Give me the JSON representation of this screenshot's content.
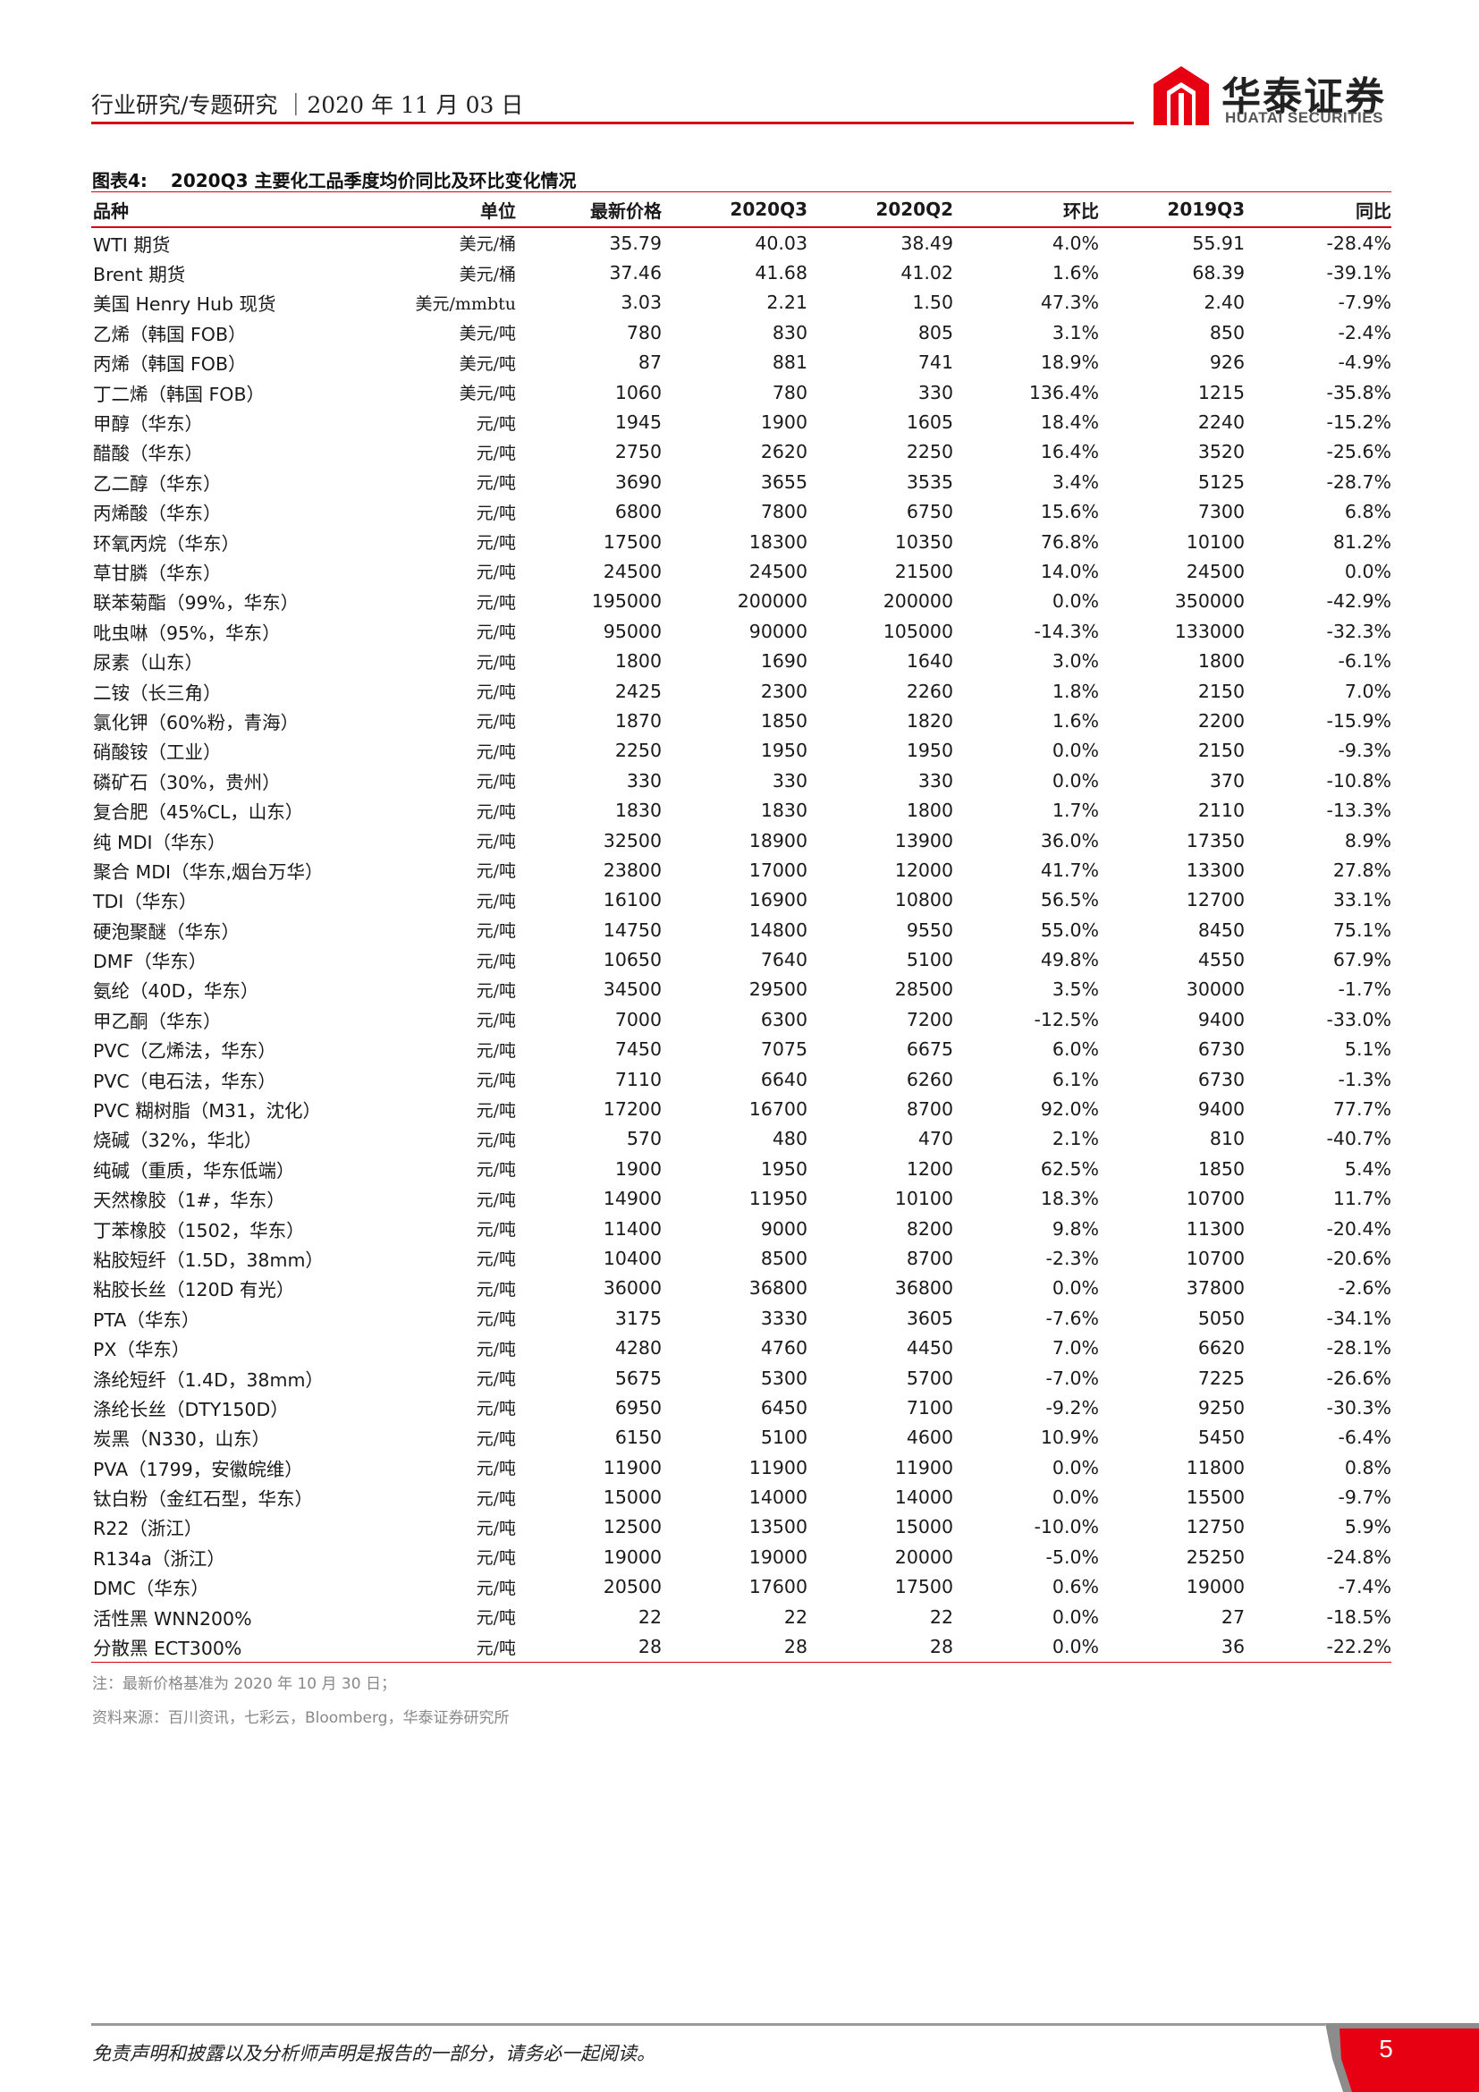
{
  "header": {
    "breadcrumb": "行业研究/专题研究 ｜2020 年 11 月 03 日",
    "logo_cn": "华泰证券",
    "logo_en": "HUATAI SECURITIES",
    "accent_color": "#d7000f"
  },
  "figure": {
    "number": "图表4:",
    "title": "2020Q3 主要化工品季度均价同比及环比变化情况"
  },
  "table": {
    "columns": [
      "品种",
      "单位",
      "最新价格",
      "2020Q3",
      "2020Q2",
      "环比",
      "2019Q3",
      "同比"
    ],
    "rows": [
      [
        "WTI 期货",
        "美元/桶",
        "35.79",
        "40.03",
        "38.49",
        "4.0%",
        "55.91",
        "-28.4%"
      ],
      [
        "Brent 期货",
        "美元/桶",
        "37.46",
        "41.68",
        "41.02",
        "1.6%",
        "68.39",
        "-39.1%"
      ],
      [
        "美国 Henry Hub 现货",
        "美元/mmbtu",
        "3.03",
        "2.21",
        "1.50",
        "47.3%",
        "2.40",
        "-7.9%"
      ],
      [
        "乙烯（韩国 FOB）",
        "美元/吨",
        "780",
        "830",
        "805",
        "3.1%",
        "850",
        "-2.4%"
      ],
      [
        "丙烯（韩国 FOB）",
        "美元/吨",
        "87",
        "881",
        "741",
        "18.9%",
        "926",
        "-4.9%"
      ],
      [
        "丁二烯（韩国 FOB）",
        "美元/吨",
        "1060",
        "780",
        "330",
        "136.4%",
        "1215",
        "-35.8%"
      ],
      [
        "甲醇（华东）",
        "元/吨",
        "1945",
        "1900",
        "1605",
        "18.4%",
        "2240",
        "-15.2%"
      ],
      [
        "醋酸（华东）",
        "元/吨",
        "2750",
        "2620",
        "2250",
        "16.4%",
        "3520",
        "-25.6%"
      ],
      [
        "乙二醇（华东）",
        "元/吨",
        "3690",
        "3655",
        "3535",
        "3.4%",
        "5125",
        "-28.7%"
      ],
      [
        "丙烯酸（华东）",
        "元/吨",
        "6800",
        "7800",
        "6750",
        "15.6%",
        "7300",
        "6.8%"
      ],
      [
        "环氧丙烷（华东）",
        "元/吨",
        "17500",
        "18300",
        "10350",
        "76.8%",
        "10100",
        "81.2%"
      ],
      [
        "草甘膦（华东）",
        "元/吨",
        "24500",
        "24500",
        "21500",
        "14.0%",
        "24500",
        "0.0%"
      ],
      [
        "联苯菊酯（99%，华东）",
        "元/吨",
        "195000",
        "200000",
        "200000",
        "0.0%",
        "350000",
        "-42.9%"
      ],
      [
        "吡虫啉（95%，华东）",
        "元/吨",
        "95000",
        "90000",
        "105000",
        "-14.3%",
        "133000",
        "-32.3%"
      ],
      [
        "尿素（山东）",
        "元/吨",
        "1800",
        "1690",
        "1640",
        "3.0%",
        "1800",
        "-6.1%"
      ],
      [
        "二铵（长三角）",
        "元/吨",
        "2425",
        "2300",
        "2260",
        "1.8%",
        "2150",
        "7.0%"
      ],
      [
        "氯化钾（60%粉，青海）",
        "元/吨",
        "1870",
        "1850",
        "1820",
        "1.6%",
        "2200",
        "-15.9%"
      ],
      [
        "硝酸铵（工业）",
        "元/吨",
        "2250",
        "1950",
        "1950",
        "0.0%",
        "2150",
        "-9.3%"
      ],
      [
        "磷矿石（30%，贵州）",
        "元/吨",
        "330",
        "330",
        "330",
        "0.0%",
        "370",
        "-10.8%"
      ],
      [
        "复合肥（45%CL，山东）",
        "元/吨",
        "1830",
        "1830",
        "1800",
        "1.7%",
        "2110",
        "-13.3%"
      ],
      [
        "纯 MDI（华东）",
        "元/吨",
        "32500",
        "18900",
        "13900",
        "36.0%",
        "17350",
        "8.9%"
      ],
      [
        "聚合 MDI（华东,烟台万华）",
        "元/吨",
        "23800",
        "17000",
        "12000",
        "41.7%",
        "13300",
        "27.8%"
      ],
      [
        "TDI（华东）",
        "元/吨",
        "16100",
        "16900",
        "10800",
        "56.5%",
        "12700",
        "33.1%"
      ],
      [
        "硬泡聚醚（华东）",
        "元/吨",
        "14750",
        "14800",
        "9550",
        "55.0%",
        "8450",
        "75.1%"
      ],
      [
        "DMF（华东）",
        "元/吨",
        "10650",
        "7640",
        "5100",
        "49.8%",
        "4550",
        "67.9%"
      ],
      [
        "氨纶（40D，华东）",
        "元/吨",
        "34500",
        "29500",
        "28500",
        "3.5%",
        "30000",
        "-1.7%"
      ],
      [
        "甲乙酮（华东）",
        "元/吨",
        "7000",
        "6300",
        "7200",
        "-12.5%",
        "9400",
        "-33.0%"
      ],
      [
        "PVC（乙烯法，华东）",
        "元/吨",
        "7450",
        "7075",
        "6675",
        "6.0%",
        "6730",
        "5.1%"
      ],
      [
        "PVC（电石法，华东）",
        "元/吨",
        "7110",
        "6640",
        "6260",
        "6.1%",
        "6730",
        "-1.3%"
      ],
      [
        "PVC 糊树脂（M31，沈化）",
        "元/吨",
        "17200",
        "16700",
        "8700",
        "92.0%",
        "9400",
        "77.7%"
      ],
      [
        "烧碱（32%，华北）",
        "元/吨",
        "570",
        "480",
        "470",
        "2.1%",
        "810",
        "-40.7%"
      ],
      [
        "纯碱（重质，华东低端）",
        "元/吨",
        "1900",
        "1950",
        "1200",
        "62.5%",
        "1850",
        "5.4%"
      ],
      [
        "天然橡胶（1#，华东）",
        "元/吨",
        "14900",
        "11950",
        "10100",
        "18.3%",
        "10700",
        "11.7%"
      ],
      [
        "丁苯橡胶（1502，华东）",
        "元/吨",
        "11400",
        "9000",
        "8200",
        "9.8%",
        "11300",
        "-20.4%"
      ],
      [
        "粘胶短纤（1.5D，38mm）",
        "元/吨",
        "10400",
        "8500",
        "8700",
        "-2.3%",
        "10700",
        "-20.6%"
      ],
      [
        "粘胶长丝（120D 有光）",
        "元/吨",
        "36000",
        "36800",
        "36800",
        "0.0%",
        "37800",
        "-2.6%"
      ],
      [
        "PTA（华东）",
        "元/吨",
        "3175",
        "3330",
        "3605",
        "-7.6%",
        "5050",
        "-34.1%"
      ],
      [
        "PX（华东）",
        "元/吨",
        "4280",
        "4760",
        "4450",
        "7.0%",
        "6620",
        "-28.1%"
      ],
      [
        "涤纶短纤（1.4D，38mm）",
        "元/吨",
        "5675",
        "5300",
        "5700",
        "-7.0%",
        "7225",
        "-26.6%"
      ],
      [
        "涤纶长丝（DTY150D）",
        "元/吨",
        "6950",
        "6450",
        "7100",
        "-9.2%",
        "9250",
        "-30.3%"
      ],
      [
        "炭黑（N330，山东）",
        "元/吨",
        "6150",
        "5100",
        "4600",
        "10.9%",
        "5450",
        "-6.4%"
      ],
      [
        "PVA（1799，安徽皖维）",
        "元/吨",
        "11900",
        "11900",
        "11900",
        "0.0%",
        "11800",
        "0.8%"
      ],
      [
        "钛白粉（金红石型，华东）",
        "元/吨",
        "15000",
        "14000",
        "14000",
        "0.0%",
        "15500",
        "-9.7%"
      ],
      [
        "R22（浙江）",
        "元/吨",
        "12500",
        "13500",
        "15000",
        "-10.0%",
        "12750",
        "5.9%"
      ],
      [
        "R134a（浙江）",
        "元/吨",
        "19000",
        "19000",
        "20000",
        "-5.0%",
        "25250",
        "-24.8%"
      ],
      [
        "DMC（华东）",
        "元/吨",
        "20500",
        "17600",
        "17500",
        "0.6%",
        "19000",
        "-7.4%"
      ],
      [
        "活性黑 WNN200%",
        "元/吨",
        "22",
        "22",
        "22",
        "0.0%",
        "27",
        "-18.5%"
      ],
      [
        "分散黑 ECT300%",
        "元/吨",
        "28",
        "28",
        "28",
        "0.0%",
        "36",
        "-22.2%"
      ]
    ]
  },
  "note": "注：最新价格基准为 2020 年 10 月 30 日；",
  "source": "资料来源：百川资讯，七彩云，Bloomberg，华泰证券研究所",
  "footer": {
    "disclaimer": "免责声明和披露以及分析师声明是报告的一部分，请务必一起阅读。",
    "page_number": "5"
  }
}
